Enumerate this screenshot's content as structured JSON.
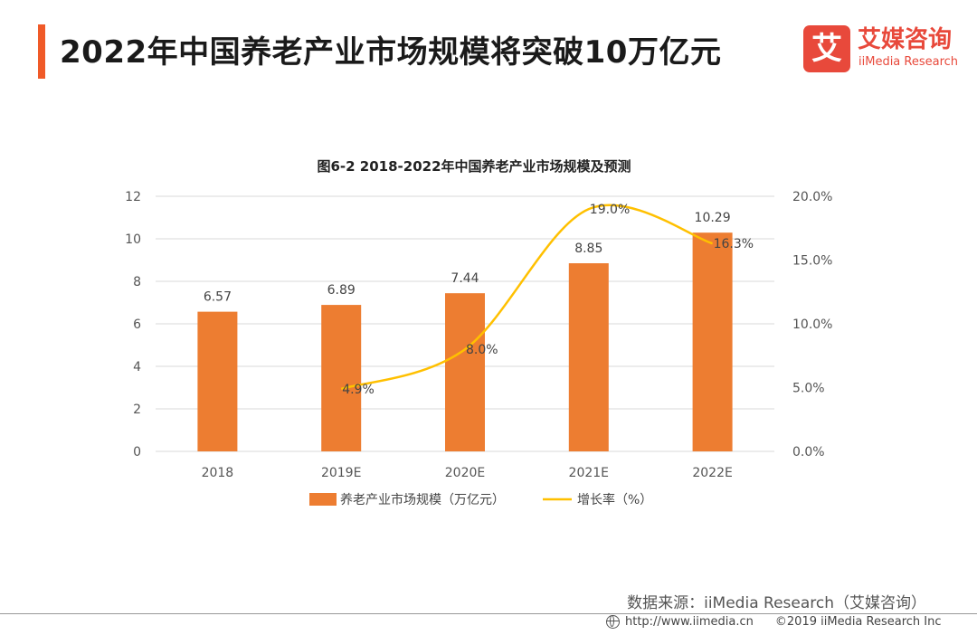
{
  "header": {
    "title": "2022年中国养老产业市场规模将突破10万亿元"
  },
  "logo": {
    "mark": "艾",
    "name_cn": "艾媒咨询",
    "name_en": "iiMedia Research"
  },
  "colors": {
    "accent": "#f05a28",
    "bar": "#ed7d31",
    "line": "#ffc000",
    "grid": "#d9d9d9",
    "logo": "#e8493b"
  },
  "chart_data": {
    "type": "bar",
    "title": "图6-2 2018-2022年中国养老产业市场规模及预测",
    "categories": [
      "2018",
      "2019E",
      "2020E",
      "2021E",
      "2022E"
    ],
    "series": [
      {
        "name": "养老产业市场规模（万亿元）",
        "type": "bar",
        "axis": "left",
        "values": [
          6.57,
          6.89,
          7.44,
          8.85,
          10.29
        ],
        "labels": [
          "6.57",
          "6.89",
          "7.44",
          "8.85",
          "10.29"
        ]
      },
      {
        "name": "增长率（%）",
        "type": "line",
        "axis": "right",
        "values": [
          null,
          4.9,
          8.0,
          19.0,
          16.3
        ],
        "labels": [
          "",
          "4.9%",
          "8.0%",
          "19.0%",
          "16.3%"
        ]
      }
    ],
    "y_left": {
      "min": 0,
      "max": 12,
      "ticks": [
        "0",
        "2",
        "4",
        "6",
        "8",
        "10",
        "12"
      ]
    },
    "y_right": {
      "min": 0,
      "max": 20,
      "ticks": [
        "0.0%",
        "5.0%",
        "10.0%",
        "15.0%",
        "20.0%"
      ]
    },
    "grid": true,
    "legend": "bottom"
  },
  "footer": {
    "source": "数据来源：iiMedia Research（艾媒咨询）",
    "url": "http://www.iimedia.cn",
    "copyright": "©2019  iiMedia Research  Inc"
  }
}
